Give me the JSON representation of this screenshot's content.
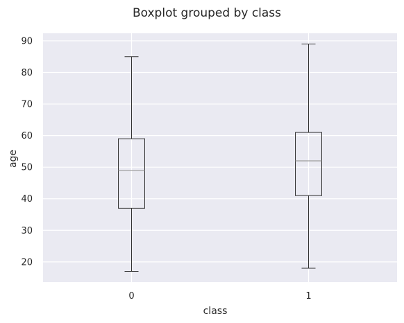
{
  "chart_data": {
    "type": "boxplot",
    "title": "Boxplot grouped by class",
    "xlabel": "class",
    "ylabel": "age",
    "categories": [
      "0",
      "1"
    ],
    "boxes": [
      {
        "category": "0",
        "whisker_low": 17,
        "q1": 37,
        "median": 49,
        "q3": 59,
        "whisker_high": 85
      },
      {
        "category": "1",
        "whisker_low": 18,
        "q1": 41,
        "median": 52,
        "q3": 61,
        "whisker_high": 89
      }
    ],
    "ylim": [
      13.6,
      92.4
    ],
    "yticks": [
      20,
      30,
      40,
      50,
      60,
      70,
      80,
      90
    ],
    "grid": true,
    "colors": {
      "background": "#eaeaf2",
      "grid": "#ffffff",
      "box": "#333333",
      "median": "#a0a0a0"
    }
  }
}
